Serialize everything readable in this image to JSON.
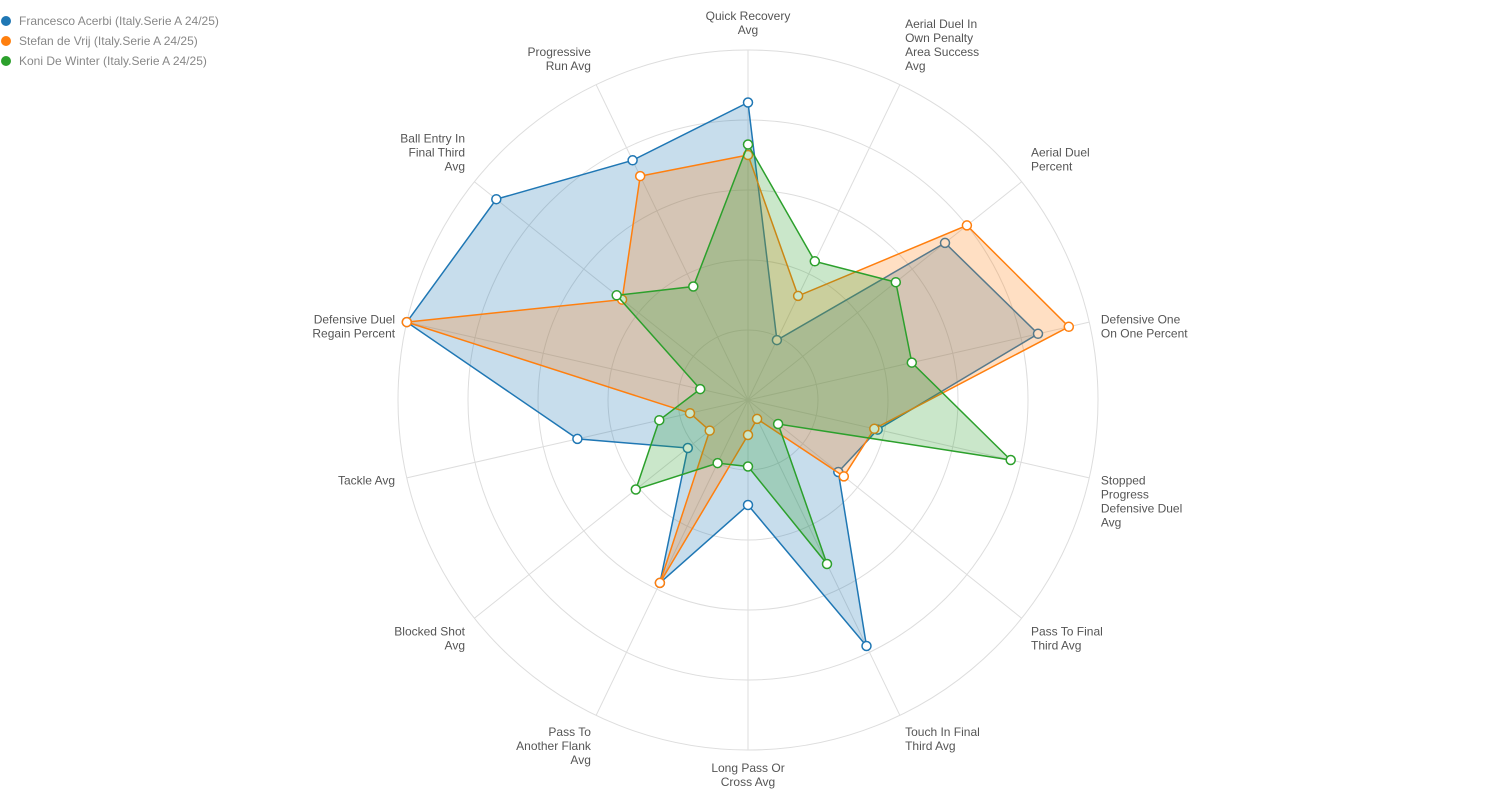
{
  "chart_data": {
    "type": "radar",
    "legend_position": "top-left",
    "grid": true,
    "rlim": [
      0,
      1
    ],
    "axes": [
      [
        "Quick Recovery",
        "Avg"
      ],
      [
        "Aerial Duel In",
        "Own Penalty",
        "Area Success",
        "Avg"
      ],
      [
        "Aerial Duel",
        "Percent"
      ],
      [
        "Defensive One",
        "On One Percent"
      ],
      [
        "Stopped",
        "Progress",
        "Defensive Duel",
        "Avg"
      ],
      [
        "Pass To Final",
        "Third Avg"
      ],
      [
        "Touch In Final",
        "Third Avg"
      ],
      [
        "Long Pass Or",
        "Cross Avg"
      ],
      [
        "Pass To",
        "Another Flank",
        "Avg"
      ],
      [
        "Blocked Shot",
        "Avg"
      ],
      [
        "Tackle Avg"
      ],
      [
        "Defensive Duel",
        "Regain Percent"
      ],
      [
        "Ball Entry In",
        "Final Third",
        "Avg"
      ],
      [
        "Progressive",
        "Run Avg"
      ]
    ],
    "series": [
      {
        "name": "Francesco Acerbi (Italy.Serie A 24/25)",
        "color": "#1f77b4",
        "values": [
          0.85,
          0.19,
          0.72,
          0.85,
          0.38,
          0.33,
          0.78,
          0.3,
          0.58,
          0.22,
          0.5,
          1.0,
          0.92,
          0.76
        ]
      },
      {
        "name": "Stefan de Vrij (Italy.Serie A 24/25)",
        "color": "#ff7f0e",
        "values": [
          0.7,
          0.33,
          0.8,
          0.94,
          0.37,
          0.35,
          0.06,
          0.1,
          0.58,
          0.14,
          0.17,
          1.0,
          0.46,
          0.71
        ]
      },
      {
        "name": "Koni De Winter (Italy.Serie A 24/25)",
        "color": "#2ca02c",
        "values": [
          0.73,
          0.44,
          0.54,
          0.48,
          0.77,
          0.11,
          0.52,
          0.19,
          0.2,
          0.41,
          0.26,
          0.14,
          0.48,
          0.36
        ]
      }
    ]
  }
}
